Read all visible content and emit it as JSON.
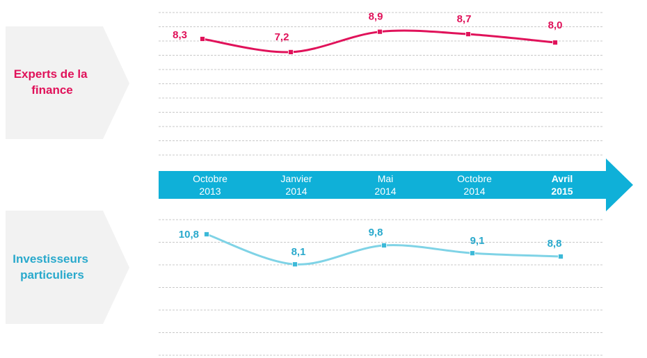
{
  "colors": {
    "finance_line": "#e0125a",
    "investor_line": "#7fd3e6",
    "investor_marker": "#3cb9d8",
    "investor_label": "#29a9cc",
    "timeline_arrow": "#0fb0d8",
    "panel_bg": "#f2f2f2",
    "grid": "#c8c8c8"
  },
  "timeline": {
    "periods": [
      {
        "month": "Octobre",
        "year": "2013",
        "bold": false
      },
      {
        "month": "Janvier",
        "year": "2014",
        "bold": false
      },
      {
        "month": "Mai",
        "year": "2014",
        "bold": false
      },
      {
        "month": "Octobre",
        "year": "2014",
        "bold": false
      },
      {
        "month": "Avril",
        "year": "2015",
        "bold": true
      }
    ]
  },
  "chart_data": [
    {
      "type": "line",
      "panel_label": "Experts de la finance",
      "label_lines": [
        "Experts de la",
        "finance"
      ],
      "categories": [
        "Octobre 2013",
        "Janvier 2014",
        "Mai 2014",
        "Octobre 2014",
        "Avril 2015"
      ],
      "values": [
        8.3,
        7.2,
        8.9,
        8.7,
        8.0
      ],
      "value_labels": [
        "8,3",
        "7,2",
        "8,9",
        "8,7",
        "8,0"
      ],
      "grid": true,
      "color": "#e0125a"
    },
    {
      "type": "line",
      "panel_label": "Investisseurs particuliers",
      "label_lines": [
        "Investisseurs",
        "particuliers"
      ],
      "categories": [
        "Octobre 2013",
        "Janvier 2014",
        "Mai 2014",
        "Octobre 2014",
        "Avril 2015"
      ],
      "values": [
        10.8,
        8.1,
        9.8,
        9.1,
        8.8
      ],
      "value_labels": [
        "10,8",
        "8,1",
        "9,8",
        "9,1",
        "8,8"
      ],
      "grid": true,
      "color": "#7fd3e6"
    }
  ]
}
